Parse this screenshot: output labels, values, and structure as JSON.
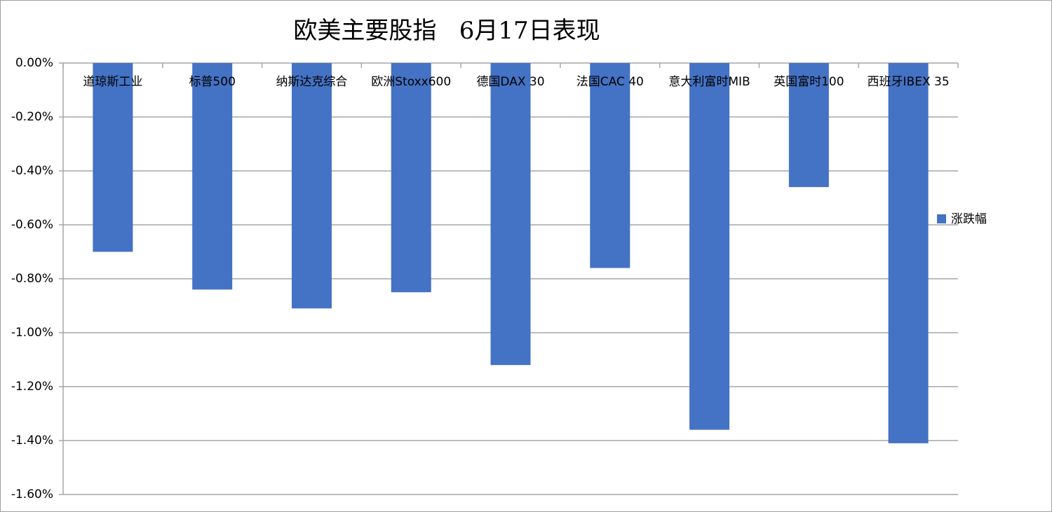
{
  "chart_data": {
    "type": "bar",
    "title": "欧美主要股指   6月17日表现",
    "categories": [
      "道琼斯工业",
      "标普500",
      "纳斯达克综合",
      "欧洲Stoxx600",
      "德国DAX 30",
      "法国CAC 40",
      "意大利富时MIB",
      "英国富时100",
      "西班牙IBEX 35"
    ],
    "series": [
      {
        "name": "涨跌幅",
        "color": "#4472c4",
        "values": [
          -0.7,
          -0.84,
          -0.91,
          -0.85,
          -1.12,
          -0.76,
          -1.36,
          -0.46,
          -1.41
        ]
      }
    ],
    "ylim": [
      -1.6,
      0
    ],
    "yticks": [
      {
        "value": 0,
        "label": "0.00%"
      },
      {
        "value": -0.2,
        "label": "-0.20%"
      },
      {
        "value": -0.4,
        "label": "-0.40%"
      },
      {
        "value": -0.6,
        "label": "-0.60%"
      },
      {
        "value": -0.8,
        "label": "-0.80%"
      },
      {
        "value": -1.0,
        "label": "-1.00%"
      },
      {
        "value": -1.2,
        "label": "-1.20%"
      },
      {
        "value": -1.4,
        "label": "-1.40%"
      },
      {
        "value": -1.6,
        "label": "-1.60%"
      }
    ],
    "grid": true,
    "legend": "right"
  }
}
